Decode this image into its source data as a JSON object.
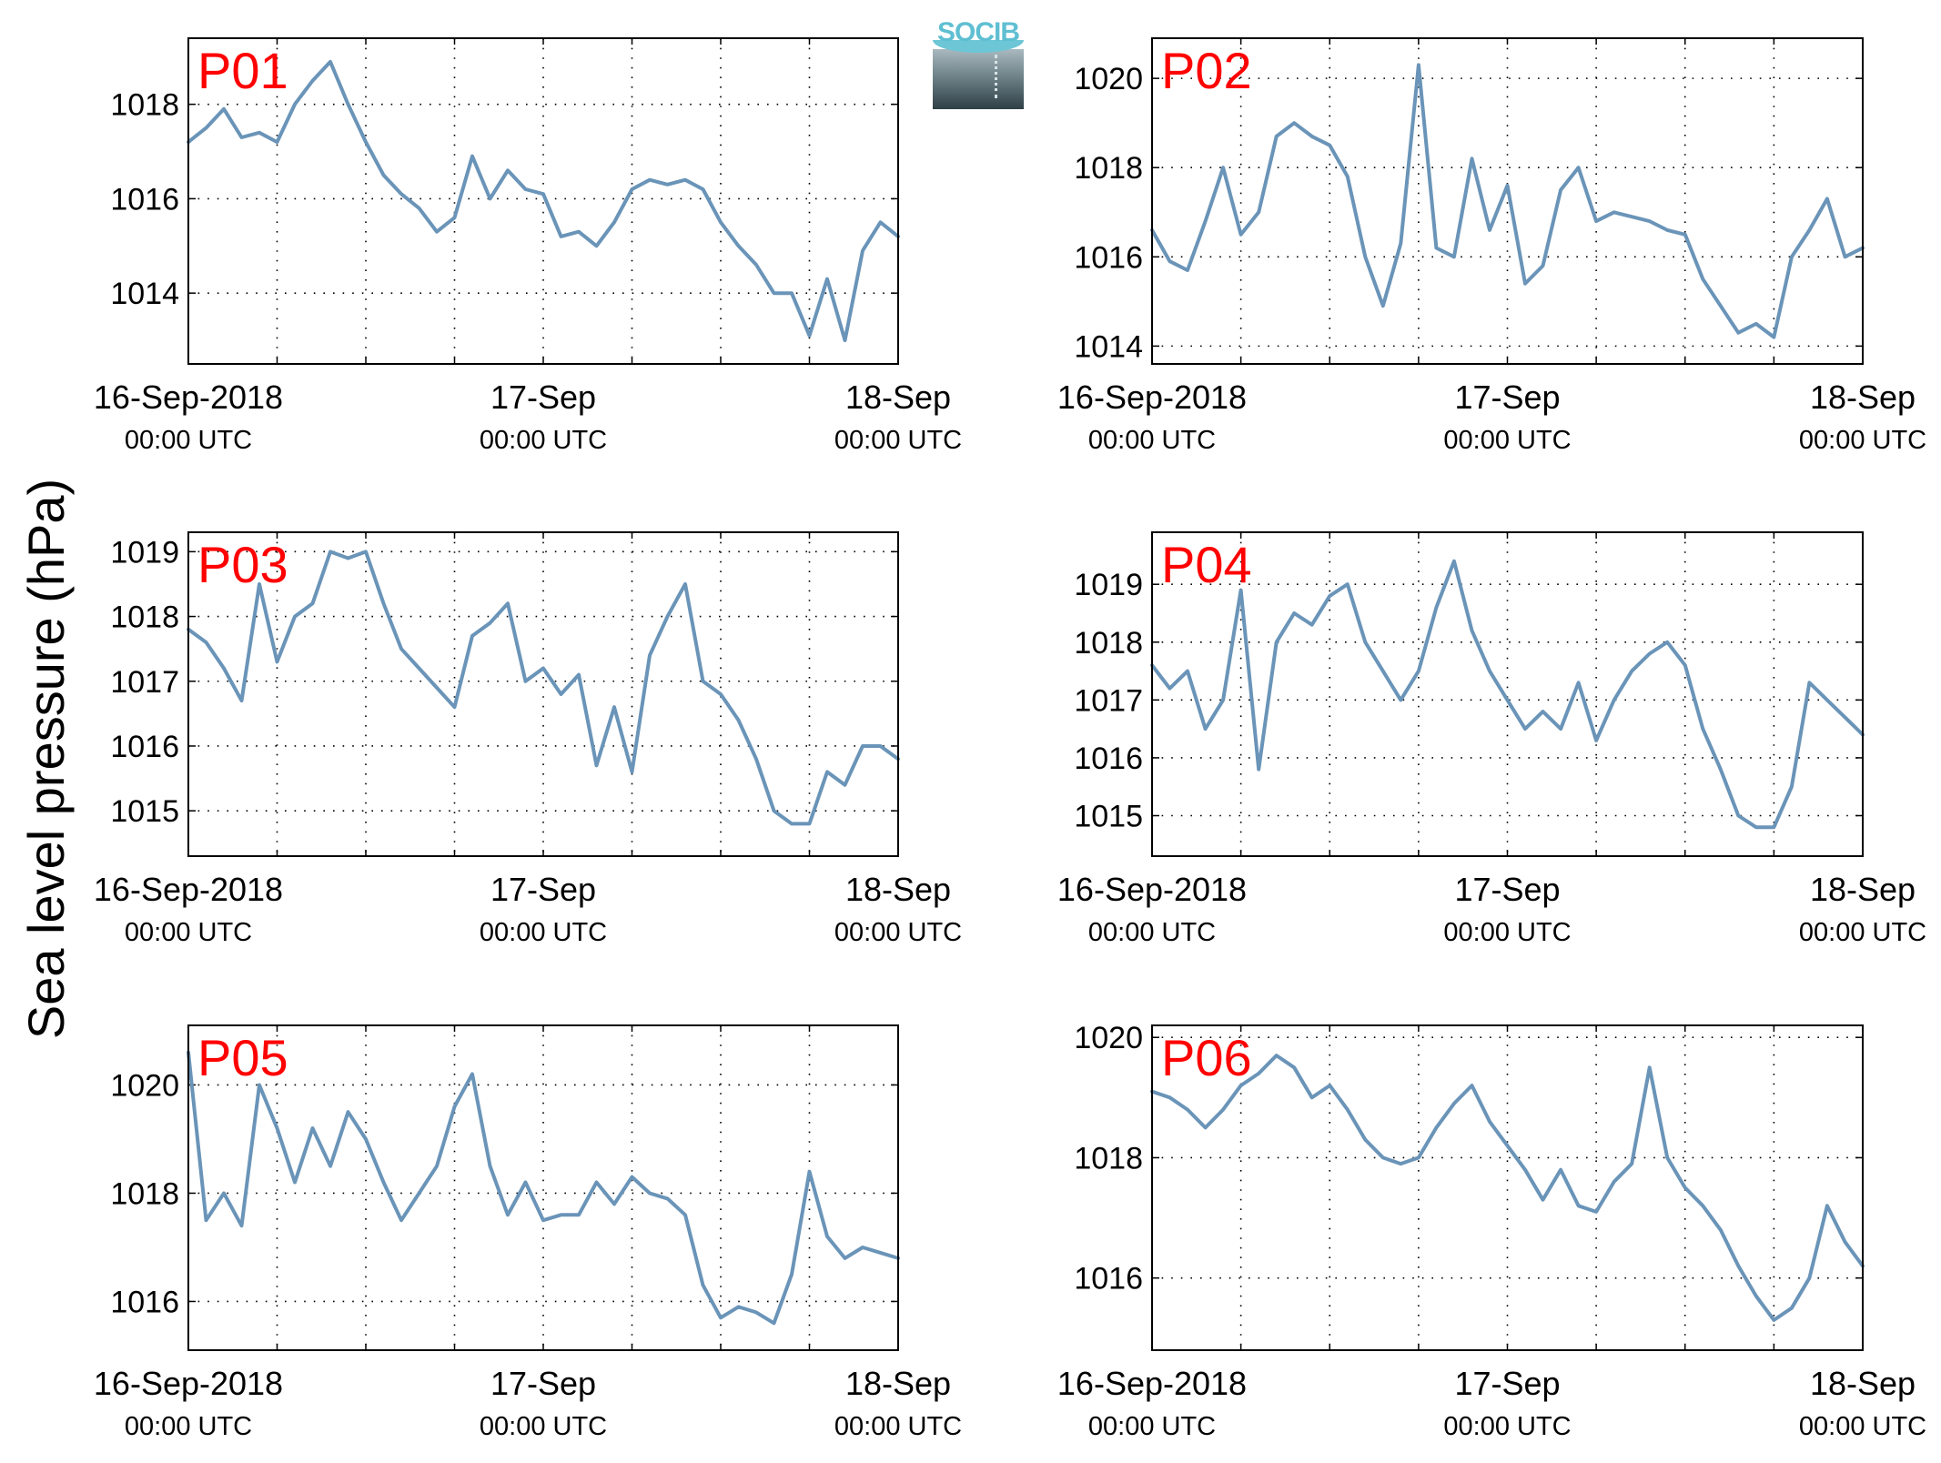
{
  "figure": {
    "ylabel": "Sea level pressure (hPa)",
    "logo_text": "SOCIB",
    "line_color": "#6a94b8",
    "panel_label_color": "#ff0000"
  },
  "chart_data": [
    {
      "type": "line",
      "title": "P01",
      "x_ticks": [
        {
          "x": "2018-09-16 00:00",
          "label": "16-Sep-2018",
          "sublabel": "00:00 UTC"
        },
        {
          "x": "2018-09-17 00:00",
          "label": "17-Sep",
          "sublabel": "00:00 UTC"
        },
        {
          "x": "2018-09-18 00:00",
          "label": "18-Sep",
          "sublabel": "00:00 UTC"
        }
      ],
      "xlim": [
        "2018-09-16 00:00",
        "2018-09-18 00:00"
      ],
      "ylim": [
        1012.5,
        1019.4
      ],
      "y_ticks": [
        1014,
        1016,
        1018
      ],
      "grid": true,
      "series": [
        {
          "x": [
            "2018-09-16 00:00",
            "2018-09-16 01:12",
            "2018-09-16 02:24",
            "2018-09-16 03:36",
            "2018-09-16 04:48",
            "2018-09-16 06:00",
            "2018-09-16 07:12",
            "2018-09-16 08:24",
            "2018-09-16 09:36",
            "2018-09-16 10:48",
            "2018-09-16 12:00",
            "2018-09-16 13:12",
            "2018-09-16 14:24",
            "2018-09-16 15:36",
            "2018-09-16 16:48",
            "2018-09-16 18:00",
            "2018-09-16 19:12",
            "2018-09-16 20:24",
            "2018-09-16 21:36",
            "2018-09-16 22:48",
            "2018-09-17 00:00",
            "2018-09-17 01:12",
            "2018-09-17 02:24",
            "2018-09-17 03:36",
            "2018-09-17 04:48",
            "2018-09-17 06:00",
            "2018-09-17 07:12",
            "2018-09-17 08:24",
            "2018-09-17 09:36",
            "2018-09-17 10:48",
            "2018-09-17 12:00",
            "2018-09-17 13:12",
            "2018-09-17 14:24",
            "2018-09-17 15:36",
            "2018-09-17 16:48",
            "2018-09-17 18:00",
            "2018-09-17 19:12",
            "2018-09-17 20:24",
            "2018-09-17 21:36",
            "2018-09-17 22:48",
            "2018-09-18 00:00"
          ],
          "values": [
            1017.2,
            1017.5,
            1017.9,
            1017.3,
            1017.4,
            1017.2,
            1018.0,
            1018.5,
            1018.9,
            1018.0,
            1017.2,
            1016.5,
            1016.1,
            1015.8,
            1015.3,
            1015.6,
            1016.9,
            1016.0,
            1016.6,
            1016.2,
            1016.1,
            1015.2,
            1015.3,
            1015.0,
            1015.5,
            1016.2,
            1016.4,
            1016.3,
            1016.4,
            1016.2,
            1015.5,
            1015.0,
            1014.6,
            1014.0,
            1014.0,
            1013.1,
            1014.3,
            1013.0,
            1014.9,
            1015.5,
            1015.2
          ]
        }
      ]
    },
    {
      "type": "line",
      "title": "P02",
      "x_ticks": [
        {
          "x": "2018-09-16 00:00",
          "label": "16-Sep-2018",
          "sublabel": "00:00 UTC"
        },
        {
          "x": "2018-09-17 00:00",
          "label": "17-Sep",
          "sublabel": "00:00 UTC"
        },
        {
          "x": "2018-09-18 00:00",
          "label": "18-Sep",
          "sublabel": "00:00 UTC"
        }
      ],
      "xlim": [
        "2018-09-16 00:00",
        "2018-09-18 00:00"
      ],
      "ylim": [
        1013.6,
        1020.9
      ],
      "y_ticks": [
        1014,
        1016,
        1018,
        1020
      ],
      "grid": true,
      "series": [
        {
          "x": [
            "2018-09-16 00:00",
            "2018-09-16 01:12",
            "2018-09-16 02:24",
            "2018-09-16 03:36",
            "2018-09-16 04:48",
            "2018-09-16 06:00",
            "2018-09-16 07:12",
            "2018-09-16 08:24",
            "2018-09-16 09:36",
            "2018-09-16 10:48",
            "2018-09-16 12:00",
            "2018-09-16 13:12",
            "2018-09-16 14:24",
            "2018-09-16 15:36",
            "2018-09-16 16:48",
            "2018-09-16 18:00",
            "2018-09-16 19:12",
            "2018-09-16 20:24",
            "2018-09-16 21:36",
            "2018-09-16 22:48",
            "2018-09-17 00:00",
            "2018-09-17 01:12",
            "2018-09-17 02:24",
            "2018-09-17 03:36",
            "2018-09-17 04:48",
            "2018-09-17 06:00",
            "2018-09-17 07:12",
            "2018-09-17 08:24",
            "2018-09-17 09:36",
            "2018-09-17 10:48",
            "2018-09-17 12:00",
            "2018-09-17 13:12",
            "2018-09-17 14:24",
            "2018-09-17 15:36",
            "2018-09-17 16:48",
            "2018-09-17 18:00",
            "2018-09-17 19:12",
            "2018-09-17 20:24",
            "2018-09-17 21:36",
            "2018-09-17 22:48",
            "2018-09-18 00:00"
          ],
          "values": [
            1016.6,
            1015.9,
            1015.7,
            1016.8,
            1018.0,
            1016.5,
            1017.0,
            1018.7,
            1019.0,
            1018.7,
            1018.5,
            1017.8,
            1016.0,
            1014.9,
            1016.3,
            1020.3,
            1016.2,
            1016.0,
            1018.2,
            1016.6,
            1017.6,
            1015.4,
            1015.8,
            1017.5,
            1018.0,
            1016.8,
            1017.0,
            1016.9,
            1016.8,
            1016.6,
            1016.5,
            1015.5,
            1014.9,
            1014.3,
            1014.5,
            1014.2,
            1016.0,
            1016.6,
            1017.3,
            1016.0,
            1016.2
          ]
        }
      ]
    },
    {
      "type": "line",
      "title": "P03",
      "x_ticks": [
        {
          "x": "2018-09-16 00:00",
          "label": "16-Sep-2018",
          "sublabel": "00:00 UTC"
        },
        {
          "x": "2018-09-17 00:00",
          "label": "17-Sep",
          "sublabel": "00:00 UTC"
        },
        {
          "x": "2018-09-18 00:00",
          "label": "18-Sep",
          "sublabel": "00:00 UTC"
        }
      ],
      "xlim": [
        "2018-09-16 00:00",
        "2018-09-18 00:00"
      ],
      "ylim": [
        1014.3,
        1019.3
      ],
      "y_ticks": [
        1015,
        1016,
        1017,
        1018,
        1019
      ],
      "grid": true,
      "series": [
        {
          "x": [
            "2018-09-16 00:00",
            "2018-09-16 01:12",
            "2018-09-16 02:24",
            "2018-09-16 03:36",
            "2018-09-16 04:48",
            "2018-09-16 06:00",
            "2018-09-16 07:12",
            "2018-09-16 08:24",
            "2018-09-16 09:36",
            "2018-09-16 10:48",
            "2018-09-16 12:00",
            "2018-09-16 13:12",
            "2018-09-16 14:24",
            "2018-09-16 15:36",
            "2018-09-16 16:48",
            "2018-09-16 18:00",
            "2018-09-16 19:12",
            "2018-09-16 20:24",
            "2018-09-16 21:36",
            "2018-09-16 22:48",
            "2018-09-17 00:00",
            "2018-09-17 01:12",
            "2018-09-17 02:24",
            "2018-09-17 03:36",
            "2018-09-17 04:48",
            "2018-09-17 06:00",
            "2018-09-17 07:12",
            "2018-09-17 08:24",
            "2018-09-17 09:36",
            "2018-09-17 10:48",
            "2018-09-17 12:00",
            "2018-09-17 13:12",
            "2018-09-17 14:24",
            "2018-09-17 15:36",
            "2018-09-17 16:48",
            "2018-09-17 18:00",
            "2018-09-17 19:12",
            "2018-09-17 20:24",
            "2018-09-17 21:36",
            "2018-09-17 22:48",
            "2018-09-18 00:00"
          ],
          "values": [
            1017.8,
            1017.6,
            1017.2,
            1016.7,
            1018.5,
            1017.3,
            1018.0,
            1018.2,
            1019.0,
            1018.9,
            1019.0,
            1018.2,
            1017.5,
            1017.2,
            1016.9,
            1016.6,
            1017.7,
            1017.9,
            1018.2,
            1017.0,
            1017.2,
            1016.8,
            1017.1,
            1015.7,
            1016.6,
            1015.6,
            1017.4,
            1018.0,
            1018.5,
            1017.0,
            1016.8,
            1016.4,
            1015.8,
            1015.0,
            1014.8,
            1014.8,
            1015.6,
            1015.4,
            1016.0,
            1016.0,
            1015.8
          ]
        }
      ]
    },
    {
      "type": "line",
      "title": "P04",
      "x_ticks": [
        {
          "x": "2018-09-16 00:00",
          "label": "16-Sep-2018",
          "sublabel": "00:00 UTC"
        },
        {
          "x": "2018-09-17 00:00",
          "label": "17-Sep",
          "sublabel": "00:00 UTC"
        },
        {
          "x": "2018-09-18 00:00",
          "label": "18-Sep",
          "sublabel": "00:00 UTC"
        }
      ],
      "xlim": [
        "2018-09-16 00:00",
        "2018-09-18 00:00"
      ],
      "ylim": [
        1014.3,
        1019.9
      ],
      "y_ticks": [
        1015,
        1016,
        1017,
        1018,
        1019
      ],
      "grid": true,
      "series": [
        {
          "x": [
            "2018-09-16 00:00",
            "2018-09-16 01:12",
            "2018-09-16 02:24",
            "2018-09-16 03:36",
            "2018-09-16 04:48",
            "2018-09-16 06:00",
            "2018-09-16 07:12",
            "2018-09-16 08:24",
            "2018-09-16 09:36",
            "2018-09-16 10:48",
            "2018-09-16 12:00",
            "2018-09-16 13:12",
            "2018-09-16 14:24",
            "2018-09-16 15:36",
            "2018-09-16 16:48",
            "2018-09-16 18:00",
            "2018-09-16 19:12",
            "2018-09-16 20:24",
            "2018-09-16 21:36",
            "2018-09-16 22:48",
            "2018-09-17 00:00",
            "2018-09-17 01:12",
            "2018-09-17 02:24",
            "2018-09-17 03:36",
            "2018-09-17 04:48",
            "2018-09-17 06:00",
            "2018-09-17 07:12",
            "2018-09-17 08:24",
            "2018-09-17 09:36",
            "2018-09-17 10:48",
            "2018-09-17 12:00",
            "2018-09-17 13:12",
            "2018-09-17 14:24",
            "2018-09-17 15:36",
            "2018-09-17 16:48",
            "2018-09-17 18:00",
            "2018-09-17 19:12",
            "2018-09-17 20:24",
            "2018-09-17 21:36",
            "2018-09-17 22:48",
            "2018-09-18 00:00"
          ],
          "values": [
            1017.6,
            1017.2,
            1017.5,
            1016.5,
            1017.0,
            1018.9,
            1015.8,
            1018.0,
            1018.5,
            1018.3,
            1018.8,
            1019.0,
            1018.0,
            1017.5,
            1017.0,
            1017.5,
            1018.6,
            1019.4,
            1018.2,
            1017.5,
            1017.0,
            1016.5,
            1016.8,
            1016.5,
            1017.3,
            1016.3,
            1017.0,
            1017.5,
            1017.8,
            1018.0,
            1017.6,
            1016.5,
            1015.8,
            1015.0,
            1014.8,
            1014.8,
            1015.5,
            1017.3,
            1017.0,
            1016.7,
            1016.4
          ]
        }
      ]
    },
    {
      "type": "line",
      "title": "P05",
      "x_ticks": [
        {
          "x": "2018-09-16 00:00",
          "label": "16-Sep-2018",
          "sublabel": "00:00 UTC"
        },
        {
          "x": "2018-09-17 00:00",
          "label": "17-Sep",
          "sublabel": "00:00 UTC"
        },
        {
          "x": "2018-09-18 00:00",
          "label": "18-Sep",
          "sublabel": "00:00 UTC"
        }
      ],
      "xlim": [
        "2018-09-16 00:00",
        "2018-09-18 00:00"
      ],
      "ylim": [
        1015.1,
        1021.1
      ],
      "y_ticks": [
        1016,
        1018,
        1020
      ],
      "grid": true,
      "series": [
        {
          "x": [
            "2018-09-16 00:00",
            "2018-09-16 01:12",
            "2018-09-16 02:24",
            "2018-09-16 03:36",
            "2018-09-16 04:48",
            "2018-09-16 06:00",
            "2018-09-16 07:12",
            "2018-09-16 08:24",
            "2018-09-16 09:36",
            "2018-09-16 10:48",
            "2018-09-16 12:00",
            "2018-09-16 13:12",
            "2018-09-16 14:24",
            "2018-09-16 15:36",
            "2018-09-16 16:48",
            "2018-09-16 18:00",
            "2018-09-16 19:12",
            "2018-09-16 20:24",
            "2018-09-16 21:36",
            "2018-09-16 22:48",
            "2018-09-17 00:00",
            "2018-09-17 01:12",
            "2018-09-17 02:24",
            "2018-09-17 03:36",
            "2018-09-17 04:48",
            "2018-09-17 06:00",
            "2018-09-17 07:12",
            "2018-09-17 08:24",
            "2018-09-17 09:36",
            "2018-09-17 10:48",
            "2018-09-17 12:00",
            "2018-09-17 13:12",
            "2018-09-17 14:24",
            "2018-09-17 15:36",
            "2018-09-17 16:48",
            "2018-09-17 18:00",
            "2018-09-17 19:12",
            "2018-09-17 20:24",
            "2018-09-17 21:36",
            "2018-09-17 22:48",
            "2018-09-18 00:00"
          ],
          "values": [
            1020.6,
            1017.5,
            1018.0,
            1017.4,
            1020.0,
            1019.2,
            1018.2,
            1019.2,
            1018.5,
            1019.5,
            1019.0,
            1018.2,
            1017.5,
            1018.0,
            1018.5,
            1019.6,
            1020.2,
            1018.5,
            1017.6,
            1018.2,
            1017.5,
            1017.6,
            1017.6,
            1018.2,
            1017.8,
            1018.3,
            1018.0,
            1017.9,
            1017.6,
            1016.3,
            1015.7,
            1015.9,
            1015.8,
            1015.6,
            1016.5,
            1018.4,
            1017.2,
            1016.8,
            1017.0,
            1016.9,
            1016.8
          ]
        }
      ]
    },
    {
      "type": "line",
      "title": "P06",
      "x_ticks": [
        {
          "x": "2018-09-16 00:00",
          "label": "16-Sep-2018",
          "sublabel": "00:00 UTC"
        },
        {
          "x": "2018-09-17 00:00",
          "label": "17-Sep",
          "sublabel": "00:00 UTC"
        },
        {
          "x": "2018-09-18 00:00",
          "label": "18-Sep",
          "sublabel": "00:00 UTC"
        }
      ],
      "xlim": [
        "2018-09-16 00:00",
        "2018-09-18 00:00"
      ],
      "ylim": [
        1014.8,
        1020.2
      ],
      "y_ticks": [
        1016,
        1018,
        1020
      ],
      "grid": true,
      "series": [
        {
          "x": [
            "2018-09-16 00:00",
            "2018-09-16 01:12",
            "2018-09-16 02:24",
            "2018-09-16 03:36",
            "2018-09-16 04:48",
            "2018-09-16 06:00",
            "2018-09-16 07:12",
            "2018-09-16 08:24",
            "2018-09-16 09:36",
            "2018-09-16 10:48",
            "2018-09-16 12:00",
            "2018-09-16 13:12",
            "2018-09-16 14:24",
            "2018-09-16 15:36",
            "2018-09-16 16:48",
            "2018-09-16 18:00",
            "2018-09-16 19:12",
            "2018-09-16 20:24",
            "2018-09-16 21:36",
            "2018-09-16 22:48",
            "2018-09-17 00:00",
            "2018-09-17 01:12",
            "2018-09-17 02:24",
            "2018-09-17 03:36",
            "2018-09-17 04:48",
            "2018-09-17 06:00",
            "2018-09-17 07:12",
            "2018-09-17 08:24",
            "2018-09-17 09:36",
            "2018-09-17 10:48",
            "2018-09-17 12:00",
            "2018-09-17 13:12",
            "2018-09-17 14:24",
            "2018-09-17 15:36",
            "2018-09-17 16:48",
            "2018-09-17 18:00",
            "2018-09-17 19:12",
            "2018-09-17 20:24",
            "2018-09-17 21:36",
            "2018-09-17 22:48",
            "2018-09-18 00:00"
          ],
          "values": [
            1019.1,
            1019.0,
            1018.8,
            1018.5,
            1018.8,
            1019.2,
            1019.4,
            1019.7,
            1019.5,
            1019.0,
            1019.2,
            1018.8,
            1018.3,
            1018.0,
            1017.9,
            1018.0,
            1018.5,
            1018.9,
            1019.2,
            1018.6,
            1018.2,
            1017.8,
            1017.3,
            1017.8,
            1017.2,
            1017.1,
            1017.6,
            1017.9,
            1019.5,
            1018.0,
            1017.5,
            1017.2,
            1016.8,
            1016.2,
            1015.7,
            1015.3,
            1015.5,
            1016.0,
            1017.2,
            1016.6,
            1016.2
          ]
        }
      ]
    }
  ]
}
